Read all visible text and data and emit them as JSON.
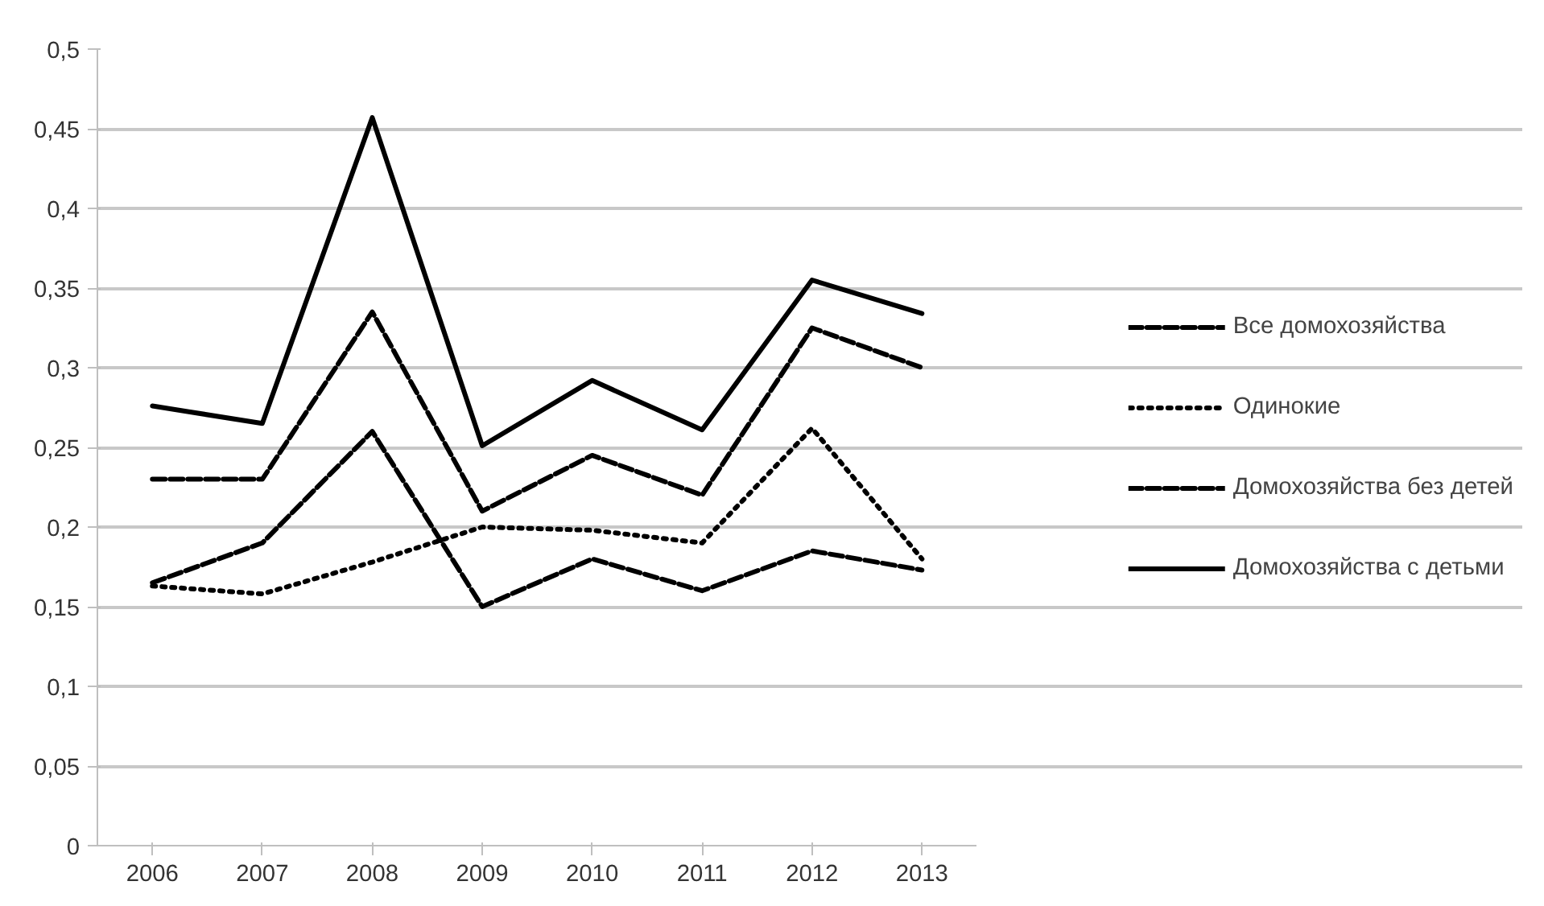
{
  "chart_data": {
    "type": "line",
    "categories": [
      "2006",
      "2007",
      "2008",
      "2009",
      "2010",
      "2011",
      "2012",
      "2013"
    ],
    "series": [
      {
        "name": "Все домохозяйства",
        "color": "#000000",
        "line_style": "dashed",
        "values": [
          0.23,
          0.23,
          0.335,
          0.21,
          0.245,
          0.22,
          0.325,
          0.3
        ]
      },
      {
        "name": "Одинокие",
        "color": "#000000",
        "line_style": "dotted",
        "values": [
          0.163,
          0.158,
          0.178,
          0.2,
          0.198,
          0.19,
          0.262,
          0.18
        ]
      },
      {
        "name": "Домохозяйства без детей",
        "color": "#000000",
        "line_style": "dashed",
        "values": [
          0.165,
          0.19,
          0.26,
          0.15,
          0.18,
          0.16,
          0.185,
          0.173
        ]
      },
      {
        "name": "Домохозяйства с детьми",
        "color": "#000000",
        "line_style": "solid",
        "values": [
          0.276,
          0.265,
          0.457,
          0.251,
          0.292,
          0.261,
          0.355,
          0.334
        ]
      }
    ],
    "ylim": [
      0,
      0.5
    ],
    "yticks": [
      0,
      {
        "value": 0.05,
        "label": "0,05"
      },
      {
        "value": 0.1,
        "label": "0,1"
      },
      {
        "value": 0.15,
        "label": "0,15"
      },
      {
        "value": 0.2,
        "label": "0,2"
      },
      {
        "value": 0.25,
        "label": "0,25"
      },
      {
        "value": 0.3,
        "label": "0,3"
      },
      {
        "value": 0.35,
        "label": "0,35"
      },
      {
        "value": 0.4,
        "label": "0,4"
      },
      {
        "value": 0.45,
        "label": "0,45"
      },
      {
        "value": 0.5,
        "label": "0,5"
      }
    ],
    "grid": "y",
    "legend": "right",
    "marker": "none"
  }
}
